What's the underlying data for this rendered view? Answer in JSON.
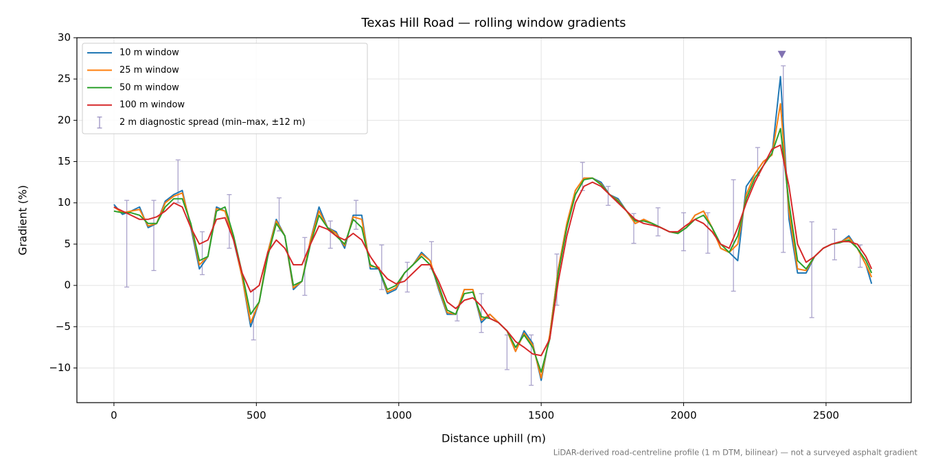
{
  "chart_data": {
    "type": "line",
    "title": "Texas Hill Road — rolling window gradients",
    "x_label": "Distance uphill (m)",
    "y_label": "Gradient (%)",
    "footnote": "LiDAR-derived road-centreline profile (1 m DTM, bilinear) — not a surveyed asphalt gradient",
    "xlim": [
      -130,
      2799
    ],
    "ylim": [
      -14.2,
      30
    ],
    "xticks": [
      0,
      500,
      1000,
      1500,
      2000,
      2500
    ],
    "yticks": [
      {
        "value": -10,
        "label": "−10"
      },
      {
        "value": -5,
        "label": "−5"
      },
      0,
      5,
      10,
      15,
      20,
      25,
      30
    ],
    "grid": true,
    "legend": "upper-left",
    "x": [
      0,
      30,
      60,
      90,
      120,
      150,
      180,
      210,
      240,
      270,
      300,
      330,
      360,
      390,
      420,
      450,
      480,
      510,
      540,
      570,
      600,
      630,
      660,
      690,
      720,
      750,
      780,
      810,
      840,
      870,
      900,
      930,
      960,
      990,
      1020,
      1050,
      1080,
      1110,
      1140,
      1170,
      1200,
      1230,
      1260,
      1290,
      1320,
      1350,
      1380,
      1410,
      1440,
      1470,
      1500,
      1530,
      1560,
      1590,
      1620,
      1650,
      1680,
      1710,
      1740,
      1770,
      1800,
      1830,
      1860,
      1890,
      1920,
      1950,
      1980,
      2010,
      2040,
      2070,
      2100,
      2130,
      2160,
      2190,
      2220,
      2250,
      2280,
      2310,
      2340,
      2370,
      2400,
      2430,
      2460,
      2490,
      2520,
      2550,
      2580,
      2610,
      2640,
      2660
    ],
    "series": [
      {
        "name": "10 m window",
        "color": "#1f77b4",
        "values": [
          9.8,
          8.6,
          9.0,
          9.5,
          7.0,
          7.5,
          10.2,
          11.0,
          11.5,
          7.0,
          2.0,
          3.5,
          9.5,
          9.0,
          5.5,
          1.0,
          -5.0,
          -2.0,
          4.0,
          8.0,
          6.0,
          -0.5,
          0.5,
          5.5,
          9.5,
          7.0,
          6.5,
          4.5,
          8.5,
          8.5,
          2.0,
          2.0,
          -1.0,
          -0.5,
          1.5,
          2.5,
          4.0,
          3.0,
          -0.5,
          -3.5,
          -3.5,
          -0.5,
          -0.5,
          -4.5,
          -3.5,
          -4.5,
          -5.5,
          -8.0,
          -5.5,
          -7.0,
          -11.5,
          -6.0,
          2.0,
          7.5,
          11.5,
          13.0,
          13.0,
          12.5,
          11.0,
          10.5,
          9.0,
          7.5,
          8.0,
          7.5,
          7.0,
          6.5,
          6.3,
          7.0,
          8.5,
          9.0,
          7.0,
          4.5,
          4.0,
          3.0,
          12.0,
          13.5,
          15.0,
          15.8,
          25.3,
          8.0,
          1.5,
          1.5,
          3.5,
          4.5,
          5.0,
          5.2,
          6.0,
          4.5,
          2.5,
          0.2
        ]
      },
      {
        "name": "25 m window",
        "color": "#ff7f0e",
        "values": [
          9.5,
          8.8,
          9.0,
          9.2,
          7.2,
          7.5,
          10.0,
          10.8,
          11.2,
          7.3,
          2.5,
          3.5,
          9.3,
          9.0,
          5.7,
          1.0,
          -4.5,
          -2.0,
          4.0,
          7.8,
          6.0,
          -0.3,
          0.5,
          5.5,
          9.0,
          7.0,
          6.3,
          4.8,
          8.3,
          8.0,
          2.3,
          2.2,
          -0.8,
          -0.3,
          1.5,
          2.5,
          3.8,
          3.0,
          -0.3,
          -3.3,
          -3.5,
          -0.5,
          -0.5,
          -4.2,
          -3.5,
          -4.5,
          -5.5,
          -8.0,
          -5.8,
          -7.2,
          -11.2,
          -6.0,
          2.0,
          7.5,
          11.5,
          13.0,
          13.0,
          12.3,
          11.0,
          10.3,
          9.0,
          7.5,
          8.0,
          7.5,
          7.0,
          6.5,
          6.3,
          7.0,
          8.5,
          9.0,
          7.0,
          4.5,
          4.0,
          5.0,
          11.0,
          13.5,
          15.0,
          15.8,
          22.0,
          9.0,
          2.0,
          1.8,
          3.5,
          4.5,
          5.0,
          5.2,
          5.8,
          4.5,
          2.5,
          1.0
        ]
      },
      {
        "name": "50 m window",
        "color": "#2ca02c",
        "values": [
          9.0,
          8.8,
          8.8,
          8.5,
          7.5,
          7.5,
          9.5,
          10.5,
          10.5,
          7.5,
          3.0,
          3.5,
          9.0,
          9.5,
          6.0,
          1.5,
          -3.5,
          -2.0,
          3.5,
          7.5,
          6.0,
          0.0,
          0.5,
          5.0,
          8.5,
          7.0,
          6.0,
          5.0,
          8.0,
          7.0,
          2.5,
          2.0,
          -0.5,
          0.0,
          1.5,
          2.5,
          3.5,
          2.5,
          0.0,
          -3.0,
          -3.5,
          -1.0,
          -0.8,
          -3.8,
          -4.0,
          -4.5,
          -5.5,
          -7.5,
          -6.0,
          -7.5,
          -10.5,
          -6.5,
          1.5,
          7.0,
          11.0,
          12.8,
          13.0,
          12.2,
          11.0,
          10.2,
          9.0,
          7.8,
          7.8,
          7.5,
          7.0,
          6.5,
          6.3,
          7.0,
          8.0,
          8.5,
          7.0,
          5.0,
          4.0,
          6.0,
          10.5,
          13.0,
          14.5,
          16.0,
          19.0,
          10.0,
          3.0,
          2.0,
          3.5,
          4.5,
          5.0,
          5.2,
          5.5,
          4.5,
          3.0,
          1.5
        ]
      },
      {
        "name": "100 m window",
        "color": "#d62728",
        "values": [
          9.5,
          9.0,
          8.5,
          8.0,
          8.0,
          8.3,
          9.0,
          10.0,
          9.5,
          7.0,
          5.0,
          5.5,
          8.0,
          8.2,
          5.5,
          1.5,
          -0.8,
          0.0,
          4.0,
          5.5,
          4.5,
          2.5,
          2.5,
          5.0,
          7.2,
          6.8,
          6.0,
          5.5,
          6.3,
          5.5,
          3.5,
          2.0,
          0.8,
          0.2,
          0.5,
          1.5,
          2.5,
          2.5,
          0.5,
          -2.0,
          -2.8,
          -1.8,
          -1.5,
          -2.5,
          -4.0,
          -4.5,
          -5.5,
          -6.8,
          -7.5,
          -8.3,
          -8.5,
          -6.5,
          0.5,
          6.0,
          10.0,
          12.0,
          12.5,
          12.0,
          11.0,
          10.0,
          9.0,
          8.0,
          7.5,
          7.3,
          7.0,
          6.5,
          6.5,
          7.3,
          8.0,
          7.5,
          6.5,
          5.0,
          4.5,
          7.0,
          10.0,
          12.5,
          14.5,
          16.5,
          17.0,
          12.0,
          5.0,
          2.8,
          3.5,
          4.5,
          5.0,
          5.3,
          5.3,
          5.0,
          3.5,
          2.0
        ]
      }
    ],
    "error_bars": {
      "name": "2 m diagnostic spread (min–max, ±12 m)",
      "color": "#9b92c2",
      "x": [
        45,
        140,
        225,
        310,
        405,
        490,
        580,
        670,
        760,
        850,
        940,
        1030,
        1115,
        1205,
        1290,
        1380,
        1465,
        1555,
        1645,
        1735,
        1825,
        1910,
        2000,
        2085,
        2175,
        2260,
        2350,
        2450,
        2530,
        2620
      ],
      "low": [
        -0.2,
        1.8,
        10.0,
        1.3,
        4.5,
        -6.6,
        6.6,
        -1.2,
        4.5,
        6.8,
        -0.5,
        -0.8,
        2.0,
        -4.3,
        -5.7,
        -10.2,
        -12.1,
        -2.4,
        11.5,
        9.7,
        5.1,
        6.0,
        4.2,
        3.9,
        -0.7,
        13.3,
        4.0,
        -3.9,
        3.1,
        2.2
      ],
      "high": [
        10.3,
        10.3,
        15.2,
        6.5,
        11.0,
        -0.5,
        10.6,
        5.8,
        7.8,
        10.3,
        4.9,
        2.8,
        5.3,
        -2.7,
        -1.0,
        -6.0,
        -6.0,
        3.8,
        14.9,
        12.0,
        8.7,
        9.4,
        8.8,
        8.8,
        12.8,
        16.7,
        26.6,
        7.7,
        6.8,
        4.9
      ]
    },
    "peak_marker": {
      "x": 2345,
      "y": 28,
      "color": "#8172b2"
    }
  }
}
